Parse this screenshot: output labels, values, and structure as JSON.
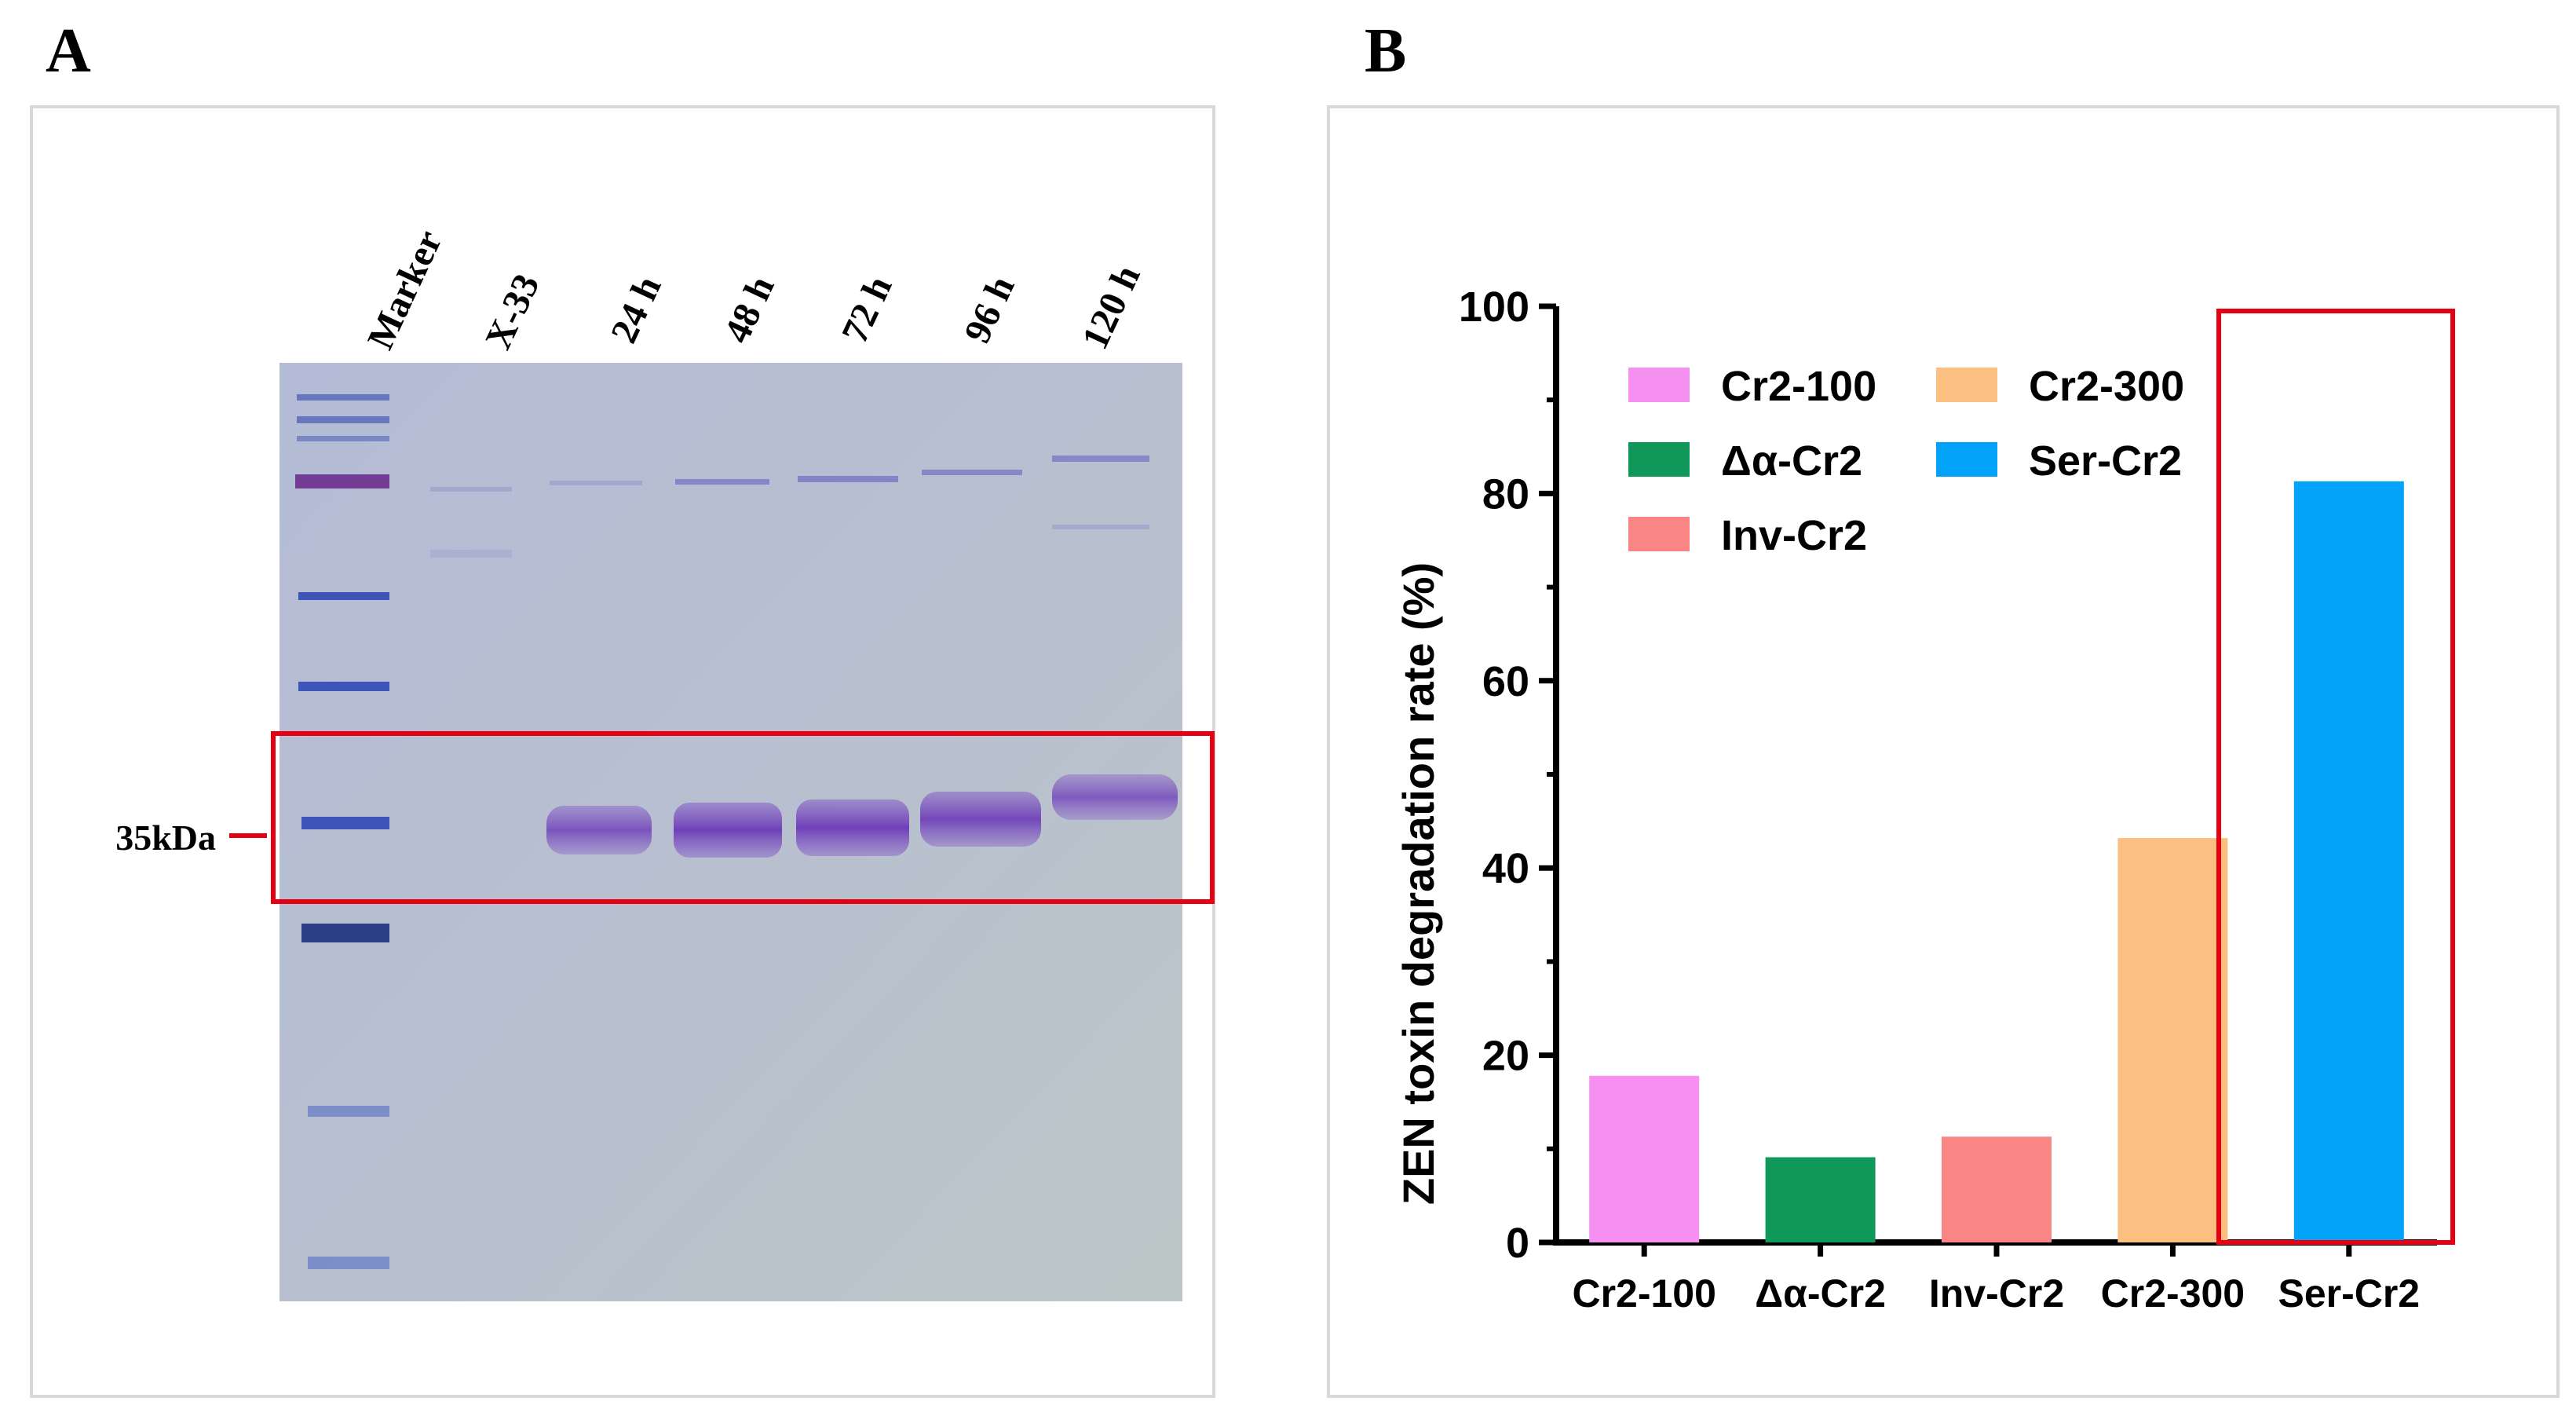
{
  "panel_a": {
    "letter": "A",
    "lane_labels": [
      "Marker",
      "X-33",
      "24 h",
      "48 h",
      "72 h",
      "96 h",
      "120 h"
    ],
    "size_label": "35kDa",
    "colors": {
      "gel": "#b7bfd6",
      "band": "#7c4fc0",
      "highlight": "#e60012",
      "marker_band": "#3d55b8"
    }
  },
  "panel_b": {
    "letter": "B",
    "colors": {
      "highlight": "#e60012"
    }
  },
  "chart_data": {
    "type": "bar",
    "title": "",
    "xlabel": "",
    "ylabel": "ZEN toxin degradation rate (%)",
    "ylim": [
      0,
      100
    ],
    "yticks": [
      "0",
      "20",
      "40",
      "60",
      "80",
      "100"
    ],
    "categories": [
      "Cr2-100",
      "Δα-Cr2",
      "Inv-Cr2",
      "Cr2-300",
      "Ser-Cr2"
    ],
    "values": [
      17.8,
      9.1,
      11.3,
      43.2,
      81.3
    ],
    "colors": [
      "#f690f0",
      "#10975a",
      "#f98585",
      "#fbc081",
      "#03a2f9"
    ],
    "legend": {
      "placement": "top-left",
      "entries": [
        "Cr2-100",
        "Δα-Cr2",
        "Inv-Cr2",
        "Cr2-300",
        "Ser-Cr2"
      ]
    }
  }
}
